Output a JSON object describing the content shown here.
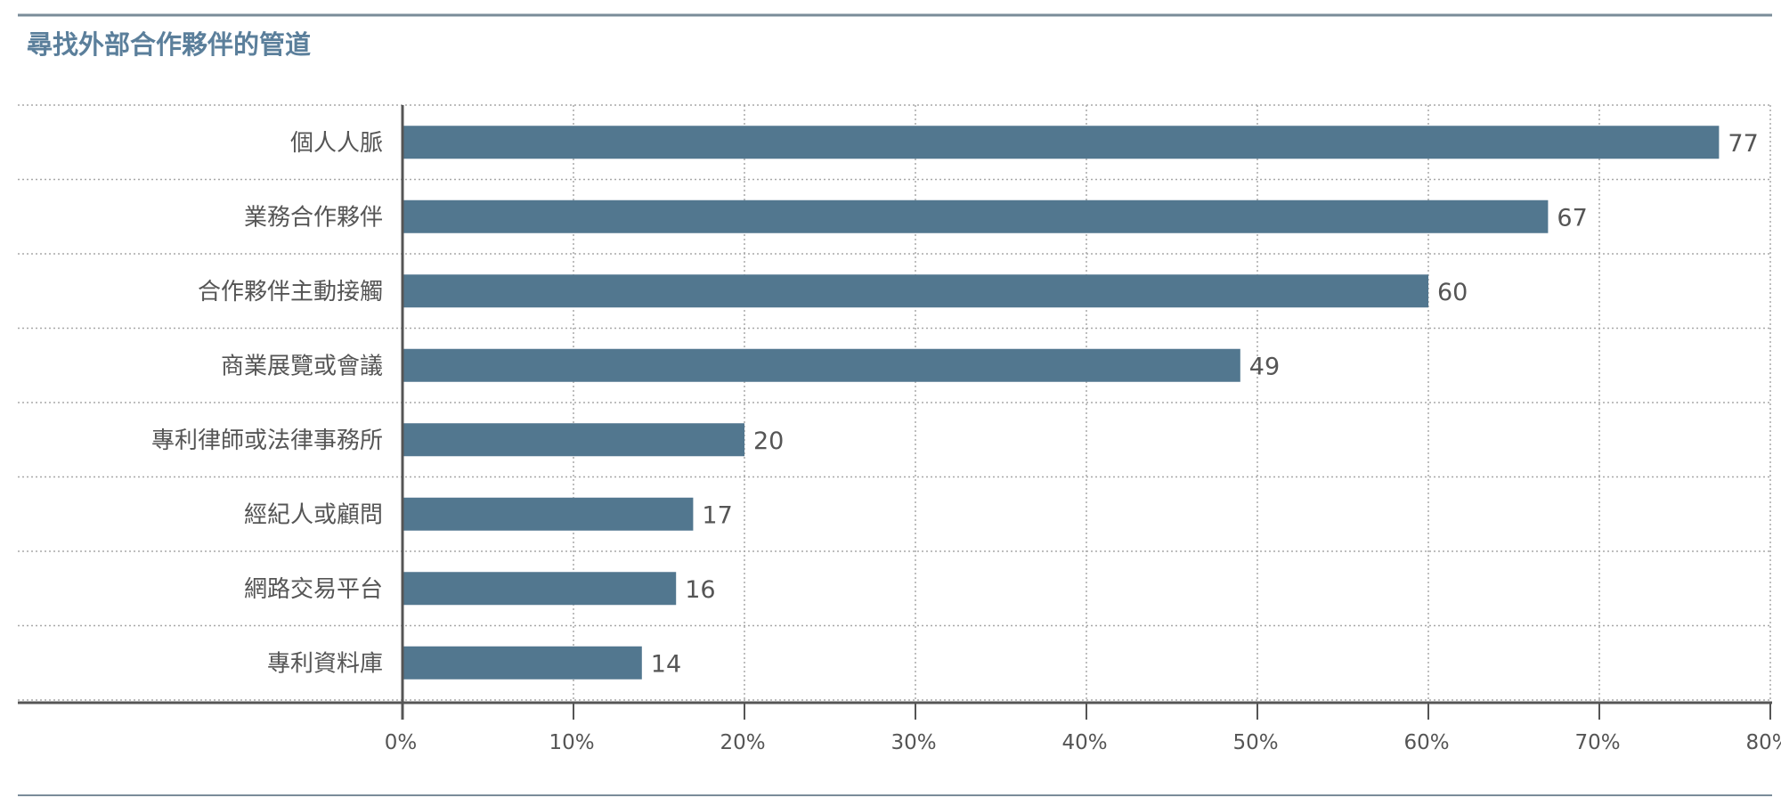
{
  "colors": {
    "title": "#5b7f9b",
    "bar": "#52778f",
    "text": "#555555",
    "axis": "#555555",
    "grid": "#a8a8a8",
    "rule": "#7a8c99"
  },
  "chart_data": {
    "type": "bar",
    "orientation": "horizontal",
    "title": "尋找外部合作夥伴的管道",
    "categories": [
      "個人人脈",
      "業務合作夥伴",
      "合作夥伴主動接觸",
      "商業展覽或會議",
      "專利律師或法律事務所",
      "經紀人或顧問",
      "網路交易平台",
      "專利資料庫"
    ],
    "values": [
      77,
      67,
      60,
      49,
      20,
      17,
      16,
      14
    ],
    "xlim": [
      0,
      80
    ],
    "xticks": [
      0,
      10,
      20,
      30,
      40,
      50,
      60,
      70,
      80
    ],
    "xtick_labels": [
      "0%",
      "10%",
      "20%",
      "30%",
      "40%",
      "50%",
      "60%",
      "70%",
      "80%"
    ],
    "grid": "dotted"
  }
}
